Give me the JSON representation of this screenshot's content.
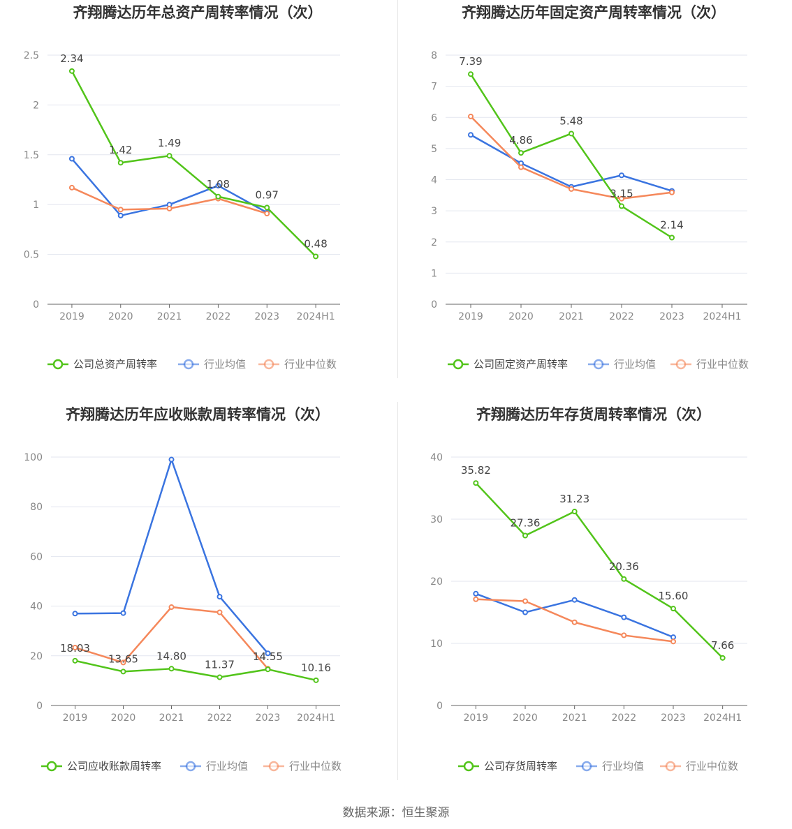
{
  "colors": {
    "company": "#52c41a",
    "avg": "#3a74e0",
    "median": "#f5885b"
  },
  "source": "数据来源：恒生聚源",
  "chart_data": [
    {
      "type": "line",
      "title": "齐翔腾达历年总资产周转率情况（次）",
      "categories": [
        "2019",
        "2020",
        "2021",
        "2022",
        "2023",
        "2024H1"
      ],
      "ylim": [
        0,
        2.5
      ],
      "yticks": [
        "0",
        "0.5",
        "1",
        "1.5",
        "2",
        "2.5"
      ],
      "series": [
        {
          "name": "公司总资产周转率",
          "key": "company",
          "values": [
            2.34,
            1.42,
            1.49,
            1.08,
            0.97,
            0.48
          ],
          "labels": [
            "2.34",
            "1.42",
            "1.49",
            "1.08",
            "0.97",
            "0.48"
          ]
        },
        {
          "name": "行业均值",
          "key": "avg",
          "values": [
            1.46,
            0.89,
            1.0,
            1.19,
            0.92,
            null
          ]
        },
        {
          "name": "行业中位数",
          "key": "median",
          "values": [
            1.17,
            0.95,
            0.96,
            1.06,
            0.91,
            null
          ]
        }
      ]
    },
    {
      "type": "line",
      "title": "齐翔腾达历年固定资产周转率情况（次）",
      "categories": [
        "2019",
        "2020",
        "2021",
        "2022",
        "2023",
        "2024H1"
      ],
      "ylim": [
        0,
        8
      ],
      "yticks": [
        "0",
        "1",
        "2",
        "3",
        "4",
        "5",
        "6",
        "7",
        "8"
      ],
      "series": [
        {
          "name": "公司固定资产周转率",
          "key": "company",
          "values": [
            7.39,
            4.86,
            5.48,
            3.15,
            2.14,
            null
          ],
          "labels": [
            "7.39",
            "4.86",
            "5.48",
            "3.15",
            "2.14",
            ""
          ]
        },
        {
          "name": "行业均值",
          "key": "avg",
          "values": [
            5.44,
            4.53,
            3.77,
            4.14,
            3.64,
            null
          ]
        },
        {
          "name": "行业中位数",
          "key": "median",
          "values": [
            6.03,
            4.4,
            3.7,
            3.39,
            3.59,
            null
          ]
        }
      ]
    },
    {
      "type": "line",
      "title": "齐翔腾达历年应收账款周转率情况（次）",
      "categories": [
        "2019",
        "2020",
        "2021",
        "2022",
        "2023",
        "2024H1"
      ],
      "ylim": [
        0,
        100
      ],
      "yticks": [
        "0",
        "20",
        "40",
        "60",
        "80",
        "100"
      ],
      "series": [
        {
          "name": "公司应收账款周转率",
          "key": "company",
          "values": [
            18.03,
            13.65,
            14.8,
            11.37,
            14.55,
            10.16
          ],
          "labels": [
            "18.03",
            "13.65",
            "14.80",
            "11.37",
            "14.55",
            "10.16"
          ]
        },
        {
          "name": "行业均值",
          "key": "avg",
          "values": [
            37.0,
            37.2,
            99.0,
            43.8,
            21.0,
            null
          ]
        },
        {
          "name": "行业中位数",
          "key": "median",
          "values": [
            23.3,
            17.3,
            39.6,
            37.5,
            14.8,
            null
          ]
        }
      ]
    },
    {
      "type": "line",
      "title": "齐翔腾达历年存货周转率情况（次）",
      "categories": [
        "2019",
        "2020",
        "2021",
        "2022",
        "2023",
        "2024H1"
      ],
      "ylim": [
        0,
        40
      ],
      "yticks": [
        "0",
        "10",
        "20",
        "30",
        "40"
      ],
      "series": [
        {
          "name": "公司存货周转率",
          "key": "company",
          "values": [
            35.82,
            27.36,
            31.23,
            20.36,
            15.6,
            7.66
          ],
          "labels": [
            "35.82",
            "27.36",
            "31.23",
            "20.36",
            "15.60",
            "7.66"
          ]
        },
        {
          "name": "行业均值",
          "key": "avg",
          "values": [
            18.0,
            15.0,
            17.0,
            14.2,
            11.0,
            null
          ]
        },
        {
          "name": "行业中位数",
          "key": "median",
          "values": [
            17.1,
            16.8,
            13.4,
            11.3,
            10.3,
            null
          ]
        }
      ]
    }
  ]
}
